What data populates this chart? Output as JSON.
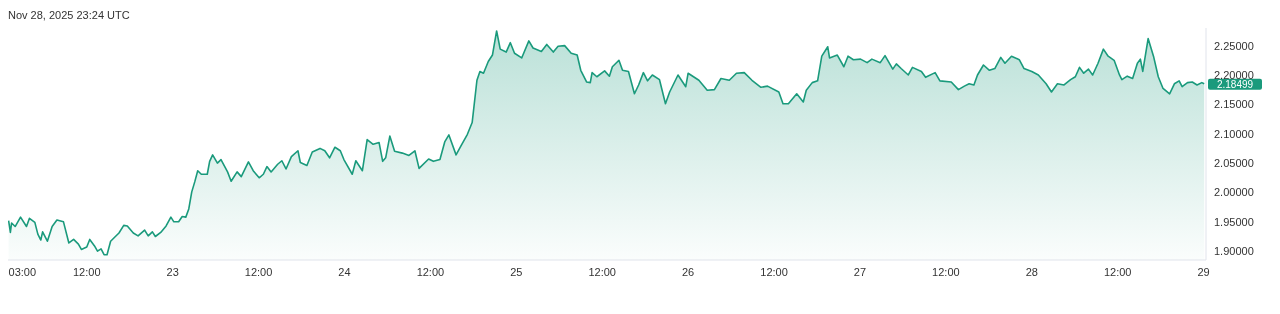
{
  "chart_data": {
    "type": "area",
    "annotations": [
      "Nov 28, 2025 23:24 UTC",
      {
        "text": "2.18499",
        "x": "2025-11-29T00:05",
        "y": 2.18499
      }
    ],
    "xlim": [
      "2025-11-22T01:00",
      "2025-11-29T00:20"
    ],
    "xticks": [
      {
        "value": "2025-11-22T03:00",
        "label": "03:00"
      },
      {
        "value": "2025-11-22T12:00",
        "label": "12:00"
      },
      {
        "value": "2025-11-23T00:00",
        "label": "23"
      },
      {
        "value": "2025-11-23T12:00",
        "label": "12:00"
      },
      {
        "value": "2025-11-24T00:00",
        "label": "24"
      },
      {
        "value": "2025-11-24T12:00",
        "label": "12:00"
      },
      {
        "value": "2025-11-25T00:00",
        "label": "25"
      },
      {
        "value": "2025-11-25T12:00",
        "label": "12:00"
      },
      {
        "value": "2025-11-26T00:00",
        "label": "26"
      },
      {
        "value": "2025-11-26T12:00",
        "label": "12:00"
      },
      {
        "value": "2025-11-27T00:00",
        "label": "27"
      },
      {
        "value": "2025-11-27T12:00",
        "label": "12:00"
      },
      {
        "value": "2025-11-28T00:00",
        "label": "28"
      },
      {
        "value": "2025-11-28T12:00",
        "label": "12:00"
      },
      {
        "value": "2025-11-29T00:00",
        "label": "29"
      }
    ],
    "ylim": [
      1.885,
      2.28
    ],
    "yticks": [
      {
        "value": 1.9,
        "label": "1.90000"
      },
      {
        "value": 1.95,
        "label": "1.95000"
      },
      {
        "value": 2.0,
        "label": "2.00000"
      },
      {
        "value": 2.05,
        "label": "2.05000"
      },
      {
        "value": 2.1,
        "label": "2.10000"
      },
      {
        "value": 2.15,
        "label": "2.15000"
      },
      {
        "value": 2.2,
        "label": "2.20000"
      },
      {
        "value": 2.25,
        "label": "2.25000"
      }
    ],
    "series": [
      {
        "color": "#1a9a7c",
        "x": [
          "2025-11-22T01:05",
          "2025-11-22T01:20",
          "2025-11-22T01:30",
          "2025-11-22T02:00",
          "2025-11-22T02:45",
          "2025-11-22T03:35",
          "2025-11-22T04:00",
          "2025-11-22T04:45",
          "2025-11-22T05:10",
          "2025-11-22T05:35",
          "2025-11-22T05:50",
          "2025-11-22T06:30",
          "2025-11-22T07:10",
          "2025-11-22T07:50",
          "2025-11-22T08:45",
          "2025-11-22T09:30",
          "2025-11-22T10:10",
          "2025-11-22T10:50",
          "2025-11-22T11:15",
          "2025-11-22T12:00",
          "2025-11-22T12:25",
          "2025-11-22T13:05",
          "2025-11-22T13:30",
          "2025-11-22T14:00",
          "2025-11-22T14:25",
          "2025-11-22T14:50",
          "2025-11-22T15:20",
          "2025-11-22T16:00",
          "2025-11-22T16:30",
          "2025-11-22T17:10",
          "2025-11-22T17:40",
          "2025-11-22T18:30",
          "2025-11-22T19:10",
          "2025-11-22T20:05",
          "2025-11-22T20:35",
          "2025-11-22T21:10",
          "2025-11-22T21:35",
          "2025-11-22T22:20",
          "2025-11-22T23:05",
          "2025-11-22T23:45",
          "2025-11-23T00:10",
          "2025-11-23T00:50",
          "2025-11-23T01:20",
          "2025-11-23T01:50",
          "2025-11-23T02:15",
          "2025-11-23T02:40",
          "2025-11-23T03:05",
          "2025-11-23T03:30",
          "2025-11-23T04:00",
          "2025-11-23T04:50",
          "2025-11-23T05:10",
          "2025-11-23T05:35",
          "2025-11-23T06:15",
          "2025-11-23T06:45",
          "2025-11-23T07:40",
          "2025-11-23T08:10",
          "2025-11-23T09:00",
          "2025-11-23T09:35",
          "2025-11-23T10:35",
          "2025-11-23T11:15",
          "2025-11-23T12:05",
          "2025-11-23T12:40",
          "2025-11-23T13:10",
          "2025-11-23T13:45",
          "2025-11-23T14:40",
          "2025-11-23T15:15",
          "2025-11-23T15:50",
          "2025-11-23T16:35",
          "2025-11-23T17:30",
          "2025-11-23T17:50",
          "2025-11-23T18:45",
          "2025-11-23T19:30",
          "2025-11-23T20:35",
          "2025-11-23T21:15",
          "2025-11-23T21:55",
          "2025-11-23T22:40",
          "2025-11-23T23:25",
          "2025-11-23T23:55",
          "2025-11-24T01:05",
          "2025-11-24T01:35",
          "2025-11-24T02:30",
          "2025-11-24T03:10",
          "2025-11-24T04:00",
          "2025-11-24T04:50",
          "2025-11-24T05:20",
          "2025-11-24T05:45",
          "2025-11-24T06:20",
          "2025-11-24T07:00",
          "2025-11-24T08:05",
          "2025-11-24T09:00",
          "2025-11-24T09:50",
          "2025-11-24T10:25",
          "2025-11-24T11:45",
          "2025-11-24T12:25",
          "2025-11-24T13:20",
          "2025-11-24T14:00",
          "2025-11-24T14:35",
          "2025-11-24T15:35",
          "2025-11-24T16:15",
          "2025-11-24T17:10",
          "2025-11-24T17:50",
          "2025-11-24T18:30",
          "2025-11-24T18:55",
          "2025-11-24T19:25",
          "2025-11-24T20:05",
          "2025-11-24T20:40",
          "2025-11-24T21:15",
          "2025-11-24T21:45",
          "2025-11-24T22:35",
          "2025-11-24T23:10",
          "2025-11-24T23:45",
          "2025-11-25T00:45",
          "2025-11-25T01:45",
          "2025-11-25T02:20",
          "2025-11-25T03:30",
          "2025-11-25T04:15",
          "2025-11-25T05:10",
          "2025-11-25T05:50",
          "2025-11-25T06:45",
          "2025-11-25T07:40",
          "2025-11-25T08:30",
          "2025-11-25T09:00",
          "2025-11-25T09:50",
          "2025-11-25T10:20",
          "2025-11-25T10:35",
          "2025-11-25T11:15",
          "2025-11-25T12:20",
          "2025-11-25T13:00",
          "2025-11-25T13:25",
          "2025-11-25T14:20",
          "2025-11-25T14:50",
          "2025-11-25T15:40",
          "2025-11-25T16:30",
          "2025-11-25T17:05",
          "2025-11-25T17:45",
          "2025-11-25T18:20",
          "2025-11-25T19:00",
          "2025-11-25T20:00",
          "2025-11-25T20:50",
          "2025-11-25T21:25",
          "2025-11-25T22:35",
          "2025-11-25T23:40",
          "2025-11-26T00:00",
          "2025-11-26T01:30",
          "2025-11-26T02:40",
          "2025-11-26T03:40",
          "2025-11-26T04:35",
          "2025-11-26T05:45",
          "2025-11-26T06:45",
          "2025-11-26T07:50",
          "2025-11-26T08:55",
          "2025-11-26T10:10",
          "2025-11-26T11:05",
          "2025-11-26T12:40",
          "2025-11-26T13:15",
          "2025-11-26T14:00",
          "2025-11-26T15:10",
          "2025-11-26T16:05",
          "2025-11-26T16:30",
          "2025-11-26T17:20",
          "2025-11-26T18:05",
          "2025-11-26T18:40",
          "2025-11-26T19:30",
          "2025-11-26T19:45",
          "2025-11-26T20:50",
          "2025-11-26T21:45",
          "2025-11-26T22:20",
          "2025-11-26T23:05",
          "2025-11-27T00:05",
          "2025-11-27T01:00",
          "2025-11-27T01:40",
          "2025-11-27T02:50",
          "2025-11-27T03:30",
          "2025-11-27T04:35",
          "2025-11-27T05:05",
          "2025-11-27T05:45",
          "2025-11-27T06:45",
          "2025-11-27T07:20",
          "2025-11-27T08:35",
          "2025-11-27T09:10",
          "2025-11-27T10:30",
          "2025-11-27T11:10",
          "2025-11-27T12:45",
          "2025-11-27T13:45",
          "2025-11-27T14:35",
          "2025-11-27T15:15",
          "2025-11-27T15:55",
          "2025-11-27T16:25",
          "2025-11-27T17:15",
          "2025-11-27T18:05",
          "2025-11-27T18:50",
          "2025-11-27T19:40",
          "2025-11-27T20:15",
          "2025-11-27T21:10",
          "2025-11-27T22:15",
          "2025-11-27T22:55",
          "2025-11-28T00:00",
          "2025-11-28T00:55",
          "2025-11-28T02:00",
          "2025-11-28T02:45",
          "2025-11-28T03:35",
          "2025-11-28T04:30",
          "2025-11-28T05:25",
          "2025-11-28T06:05",
          "2025-11-28T06:40",
          "2025-11-28T07:15",
          "2025-11-28T07:55",
          "2025-11-28T08:30",
          "2025-11-28T09:15",
          "2025-11-28T10:00",
          "2025-11-28T10:40",
          "2025-11-28T11:30",
          "2025-11-28T12:15",
          "2025-11-28T12:35",
          "2025-11-28T13:20",
          "2025-11-28T14:05",
          "2025-11-28T14:45",
          "2025-11-28T15:10",
          "2025-11-28T15:30",
          "2025-11-28T16:15",
          "2025-11-28T17:00",
          "2025-11-28T17:40",
          "2025-11-28T18:20",
          "2025-11-28T19:15",
          "2025-11-28T19:55",
          "2025-11-28T20:35",
          "2025-11-28T21:00",
          "2025-11-28T21:45",
          "2025-11-28T22:25",
          "2025-11-28T23:05",
          "2025-11-28T23:45",
          "2025-11-29T00:05"
        ],
        "values": [
          1.952,
          1.932,
          1.948,
          1.942,
          1.958,
          1.942,
          1.956,
          1.949,
          1.929,
          1.919,
          1.933,
          1.917,
          1.942,
          1.953,
          1.95,
          1.914,
          1.92,
          1.912,
          1.903,
          1.907,
          1.92,
          1.909,
          1.9,
          1.904,
          1.894,
          1.894,
          1.917,
          1.925,
          1.931,
          1.944,
          1.943,
          1.931,
          1.926,
          1.936,
          1.926,
          1.933,
          1.925,
          1.932,
          1.943,
          1.958,
          1.95,
          1.95,
          1.959,
          1.958,
          1.972,
          2.001,
          2.018,
          2.037,
          2.031,
          2.031,
          2.053,
          2.064,
          2.05,
          2.056,
          2.035,
          2.019,
          2.035,
          2.027,
          2.052,
          2.037,
          2.025,
          2.031,
          2.044,
          2.035,
          2.048,
          2.054,
          2.04,
          2.061,
          2.071,
          2.051,
          2.046,
          2.069,
          2.075,
          2.071,
          2.059,
          2.077,
          2.071,
          2.056,
          2.031,
          2.054,
          2.037,
          2.09,
          2.082,
          2.085,
          2.053,
          2.059,
          2.096,
          2.07,
          2.067,
          2.063,
          2.071,
          2.041,
          2.057,
          2.053,
          2.056,
          2.086,
          2.098,
          2.064,
          2.079,
          2.099,
          2.119,
          2.191,
          2.206,
          2.203,
          2.223,
          2.234,
          2.275,
          2.244,
          2.239,
          2.255,
          2.237,
          2.229,
          2.258,
          2.246,
          2.24,
          2.252,
          2.239,
          2.249,
          2.25,
          2.237,
          2.234,
          2.208,
          2.188,
          2.187,
          2.204,
          2.197,
          2.207,
          2.198,
          2.214,
          2.225,
          2.208,
          2.206,
          2.168,
          2.183,
          2.204,
          2.19,
          2.2,
          2.192,
          2.151,
          2.171,
          2.2,
          2.18,
          2.203,
          2.191,
          2.174,
          2.175,
          2.194,
          2.191,
          2.203,
          2.204,
          2.191,
          2.179,
          2.181,
          2.171,
          2.151,
          2.151,
          2.168,
          2.154,
          2.174,
          2.187,
          2.19,
          2.232,
          2.248,
          2.229,
          2.234,
          2.214,
          2.232,
          2.226,
          2.227,
          2.221,
          2.227,
          2.221,
          2.233,
          2.21,
          2.219,
          2.211,
          2.2,
          2.213,
          2.206,
          2.196,
          2.204,
          2.19,
          2.188,
          2.175,
          2.181,
          2.185,
          2.183,
          2.2,
          2.217,
          2.208,
          2.211,
          2.23,
          2.22,
          2.232,
          2.226,
          2.211,
          2.206,
          2.2,
          2.185,
          2.171,
          2.185,
          2.183,
          2.192,
          2.197,
          2.213,
          2.203,
          2.21,
          2.2,
          2.22,
          2.244,
          2.232,
          2.225,
          2.2,
          2.192,
          2.198,
          2.194,
          2.22,
          2.227,
          2.206,
          2.262,
          2.232,
          2.197,
          2.177,
          2.168,
          2.185,
          2.19,
          2.18,
          2.187,
          2.188,
          2.183,
          2.187,
          2.18499
        ]
      }
    ]
  }
}
